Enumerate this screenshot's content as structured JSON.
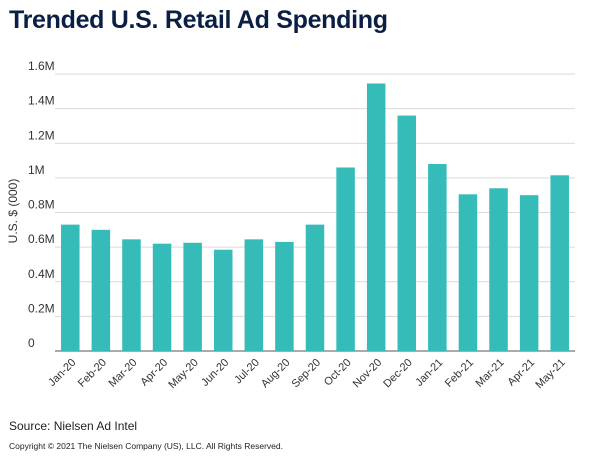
{
  "footer": {
    "source": "Source: Nielsen Ad Intel",
    "copyright": "Copyright © 2021 The Nielsen Company (US), LLC. All Rights Reserved."
  },
  "chart_data": {
    "type": "bar",
    "title": "Trended U.S. Retail Ad Spending",
    "xlabel": "",
    "ylabel": "U.S. $ (000)",
    "categories": [
      "Jan-20",
      "Feb-20",
      "Mar-20",
      "Apr-20",
      "May-20",
      "Jun-20",
      "Jul-20",
      "Aug-20",
      "Sep-20",
      "Oct-20",
      "Nov-20",
      "Dec-20",
      "Jan-21",
      "Feb-21",
      "Mar-21",
      "Apr-21",
      "May-21"
    ],
    "values": [
      730000,
      700000,
      645000,
      620000,
      625000,
      585000,
      645000,
      630000,
      730000,
      1060000,
      1545000,
      1360000,
      1080000,
      905000,
      940000,
      900000,
      1015000
    ],
    "ylim": [
      0,
      1600000
    ],
    "yticks": [
      0,
      200000,
      400000,
      600000,
      800000,
      1000000,
      1200000,
      1400000,
      1600000
    ],
    "ytick_labels": [
      "0",
      "0.2M",
      "0.4M",
      "0.6M",
      "0.8M",
      "1M",
      "1.2M",
      "1.4M",
      "1.6M"
    ],
    "grid": true,
    "bar_color": "#35bcb8",
    "grid_color": "#d9d9d9",
    "title_color": "#0b1f44"
  }
}
